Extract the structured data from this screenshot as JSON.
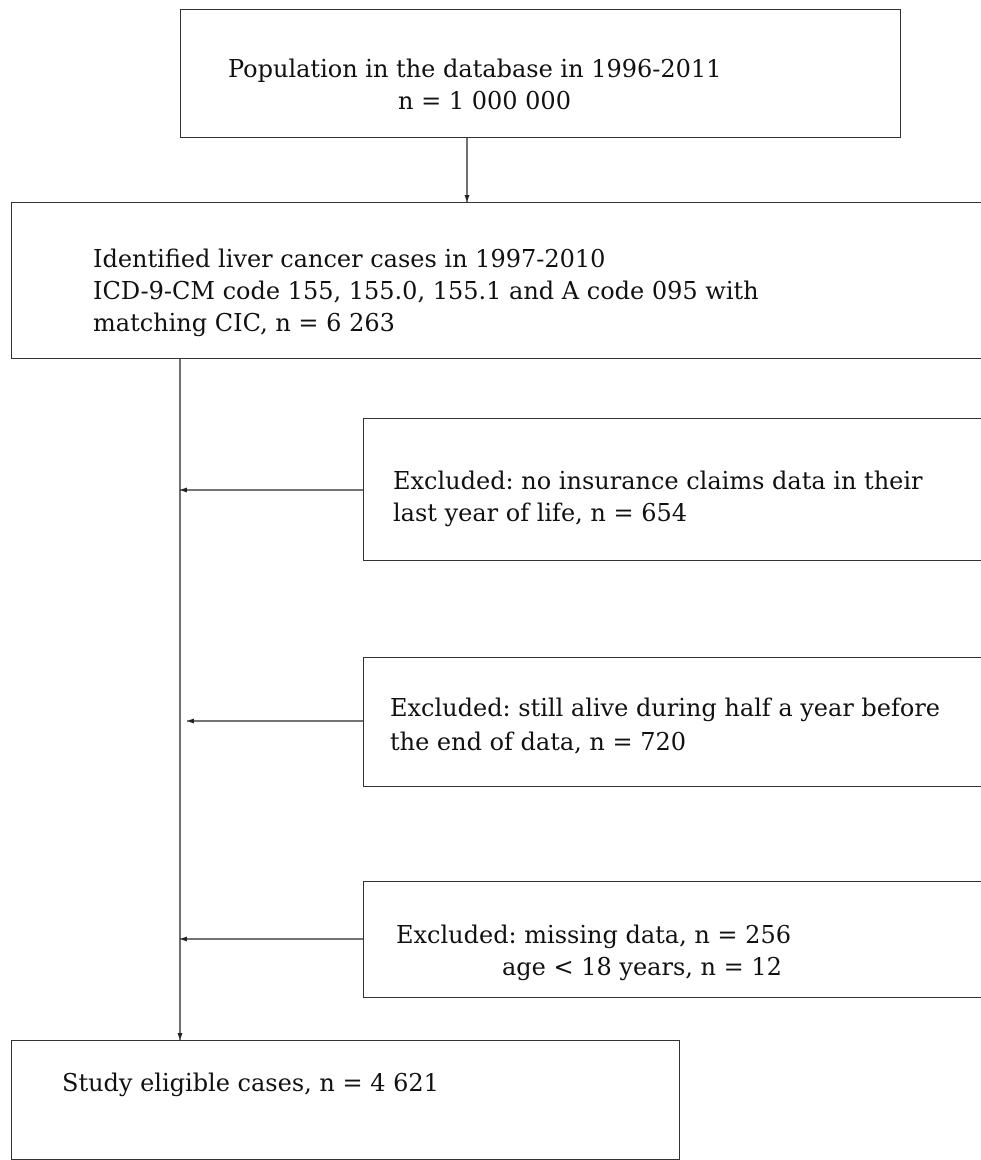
{
  "flowchart": {
    "population": {
      "line1": "Population in the database in 1996-2011",
      "line2": "n = 1 000 000"
    },
    "identified": {
      "line1": "Identified liver cancer cases in 1997-2010",
      "line2": "ICD-9-CM code 155, 155.0, 155.1 and A code 095 with",
      "line3": "matching CIC, n = 6 263"
    },
    "excluded_claims": {
      "line1": "Excluded: no insurance claims data in their",
      "line2": "last year of life, n = 654"
    },
    "excluded_alive": {
      "line1": "Excluded: still alive during half a year before",
      "line2": "the end of data, n = 720"
    },
    "excluded_missing": {
      "line1": "Excluded: missing data, n = 256",
      "line2": "age < 18 years, n = 12"
    },
    "eligible": {
      "line1": "Study eligible cases, n = 4 621"
    }
  }
}
